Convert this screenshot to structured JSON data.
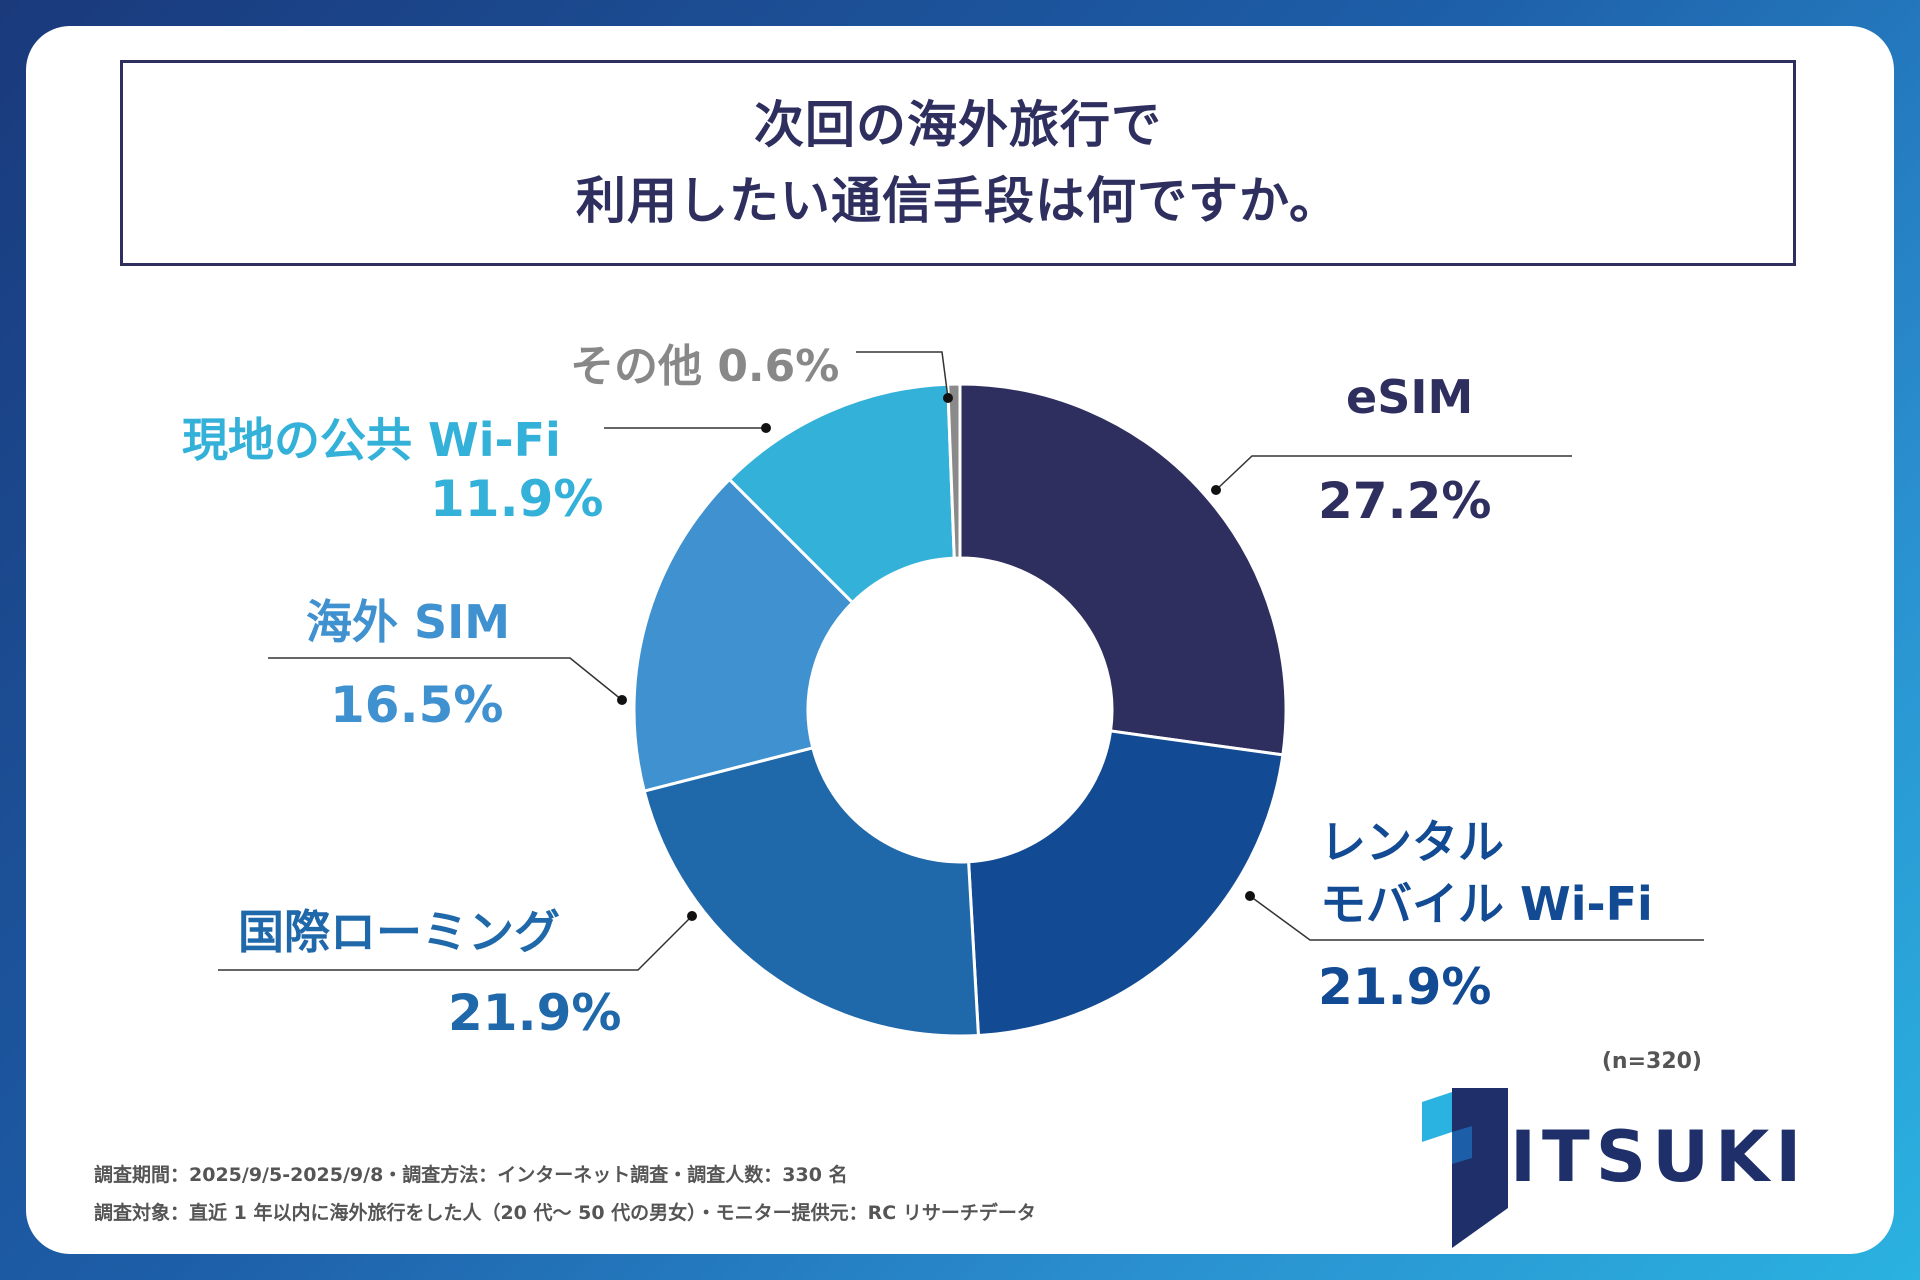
{
  "title": {
    "line1": "次回の海外旅行で",
    "line2": "利用したい通信手段は何ですか。"
  },
  "chart_data": {
    "type": "pie",
    "variant": "donut",
    "title": "次回の海外旅行で利用したい通信手段は何ですか。",
    "slices": [
      {
        "name": "eSIM",
        "value": 27.2,
        "label": "27.2%",
        "color": "#2e2f5e"
      },
      {
        "name": "レンタル モバイル Wi-Fi",
        "value": 21.9,
        "label": "21.9%",
        "color": "#124b93"
      },
      {
        "name": "国際ローミング",
        "value": 21.9,
        "label": "21.9%",
        "color": "#1f68aa"
      },
      {
        "name": "海外 SIM",
        "value": 16.5,
        "label": "16.5%",
        "color": "#3f91cf"
      },
      {
        "name": "現地の公共 Wi-Fi",
        "value": 11.9,
        "label": "11.9%",
        "color": "#33b1d9"
      },
      {
        "name": "その他",
        "value": 0.6,
        "label": "0.6%",
        "color": "#8a8a8a"
      }
    ],
    "sample_note": "(n=320)"
  },
  "labels": {
    "esim_name": "eSIM",
    "esim_val": "27.2%",
    "rental_name_line1": "レンタル",
    "rental_name_line2": "モバイル Wi-Fi",
    "rental_val": "21.9%",
    "roaming_name": "国際ローミング",
    "roaming_val": "21.9%",
    "sim_name": "海外 SIM",
    "sim_val": "16.5%",
    "wifi_name": "現地の公共 Wi-Fi",
    "wifi_val": "11.9%",
    "other_label": "その他 0.6%"
  },
  "footer": {
    "line1": "調査期間：2025/9/5-2025/9/8・調査方法：インターネット調査・調査人数：330 名",
    "line2": "調査対象：直近 1 年以内に海外旅行をした人（20 代〜 50 代の男女）・モニター提供元：RC リサーチデータ"
  },
  "brand": {
    "name": "ITSUKI",
    "logo_color": "#1e2f6a",
    "accent": "#2ab2e0"
  }
}
